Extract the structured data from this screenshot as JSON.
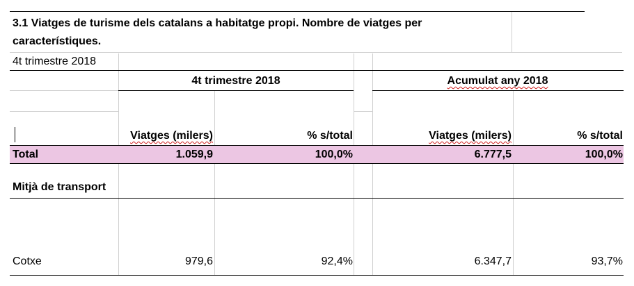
{
  "title_line1": "3.1 Viatges de turisme dels catalans a habitatge propi. Nombre de viatges per",
  "title_line2": "característiques.",
  "period_label": "4t trimestre 2018",
  "groups": {
    "quarter": "4t trimestre 2018",
    "cumulative": "Acumulat any 2018"
  },
  "columns": {
    "q_trips": "Viatges (milers)",
    "q_pct": "% s/total",
    "c_trips": "Viatges (milers)",
    "c_pct": "% s/total"
  },
  "rows": {
    "total": {
      "label": "Total",
      "q_trips": "1.059,9",
      "q_pct": "100,0%",
      "c_trips": "6.777,5",
      "c_pct": "100,0%"
    },
    "section": {
      "label": "Mitjà de transport"
    },
    "car": {
      "label": "Cotxe",
      "q_trips": "979,6",
      "q_pct": "92,4%",
      "c_trips": "6.347,7",
      "c_pct": "93,7%"
    }
  },
  "colors": {
    "total_row_bg": "#ecc6e3",
    "spell_red": "#d02020",
    "spell_green": "#2a9a2a"
  }
}
